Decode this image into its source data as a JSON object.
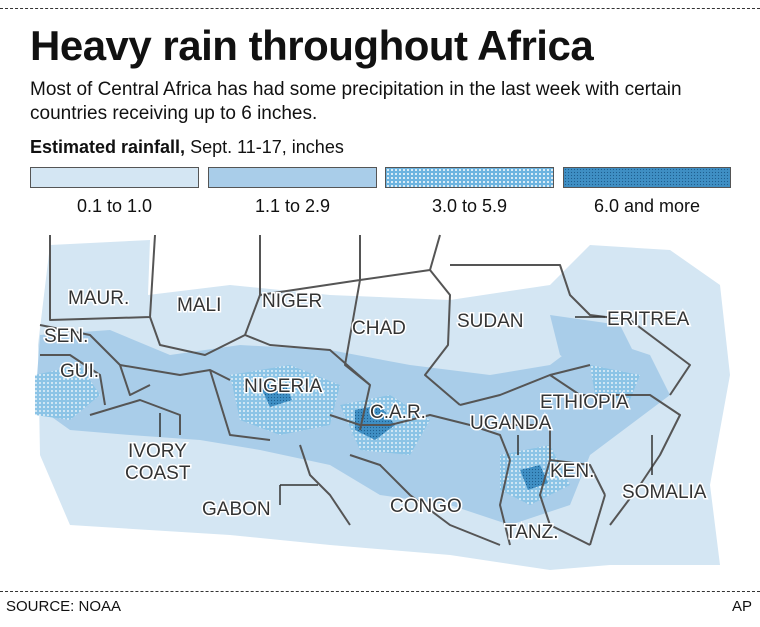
{
  "title": "Heavy rain throughout Africa",
  "subtitle": "Most of Central Africa has had some precipitation in the last week with certain countries receiving up to 6 inches.",
  "legend": {
    "title_bold": "Estimated rainfall,",
    "title_rest": " Sept. 11-17, inches",
    "items": [
      {
        "label": "0.1 to 1.0",
        "color": "#d4e6f3"
      },
      {
        "label": "1.1 to 2.9",
        "color": "#a9cde9"
      },
      {
        "label": "3.0 to 5.9",
        "color": "#6db4e0"
      },
      {
        "label": "6.0 and more",
        "color": "#3f8fc4"
      }
    ]
  },
  "map": {
    "countries": [
      "MAUR.",
      "MALI",
      "NIGER",
      "CHAD",
      "SUDAN",
      "ERITREA",
      "SEN.",
      "GUI.",
      "NIGERIA",
      "C.A.R.",
      "UGANDA",
      "ETHIOPIA",
      "IVORY",
      "COAST",
      "GABON",
      "CONGO",
      "KEN.",
      "SOMALIA",
      "TANZ."
    ]
  },
  "source": "SOURCE: NOAA",
  "credit": "AP"
}
